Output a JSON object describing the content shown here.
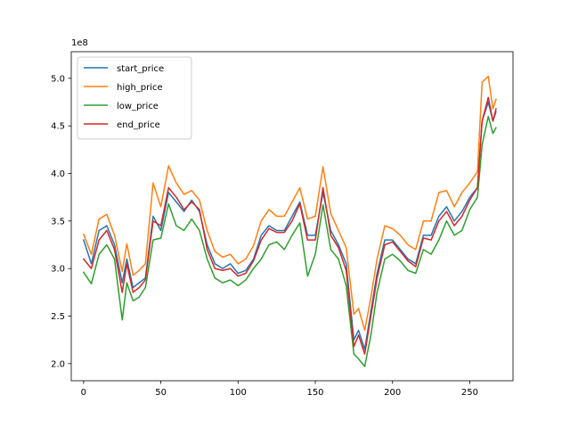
{
  "chart_data": {
    "type": "line",
    "title": "",
    "xlabel": "",
    "ylabel": "",
    "offset_label": "1e8",
    "xlim": [
      -8,
      278
    ],
    "ylim": [
      1.82,
      5.28
    ],
    "xticks": [
      0,
      50,
      100,
      150,
      200,
      250
    ],
    "xtick_labels": [
      "0",
      "50",
      "100",
      "150",
      "200",
      "250"
    ],
    "yticks": [
      2.0,
      2.5,
      3.0,
      3.5,
      4.0,
      4.5,
      5.0
    ],
    "ytick_labels": [
      "2.0",
      "2.5",
      "3.0",
      "3.5",
      "4.0",
      "4.5",
      "5.0"
    ],
    "grid": false,
    "legend_position": "top-left",
    "series": [
      {
        "name": "start_price",
        "color": "#1f77b4",
        "x": [
          0,
          5,
          10,
          15,
          20,
          25,
          28,
          32,
          36,
          40,
          45,
          50,
          55,
          60,
          65,
          70,
          75,
          80,
          85,
          90,
          95,
          100,
          105,
          110,
          115,
          120,
          125,
          130,
          135,
          140,
          145,
          150,
          155,
          160,
          165,
          170,
          175,
          178,
          182,
          186,
          190,
          195,
          200,
          205,
          210,
          215,
          220,
          225,
          230,
          235,
          240,
          245,
          250,
          255,
          258,
          262,
          265,
          267
        ],
        "values": [
          3.3,
          3.05,
          3.4,
          3.45,
          3.25,
          2.85,
          3.1,
          2.8,
          2.85,
          2.9,
          3.55,
          3.4,
          3.8,
          3.7,
          3.6,
          3.72,
          3.6,
          3.25,
          3.05,
          3.0,
          3.05,
          2.95,
          2.98,
          3.1,
          3.35,
          3.45,
          3.4,
          3.4,
          3.55,
          3.7,
          3.35,
          3.35,
          3.8,
          3.4,
          3.25,
          3.05,
          2.25,
          2.35,
          2.15,
          2.55,
          2.95,
          3.3,
          3.3,
          3.2,
          3.1,
          3.05,
          3.35,
          3.35,
          3.55,
          3.65,
          3.5,
          3.6,
          3.75,
          3.85,
          4.55,
          4.75,
          4.55,
          4.65
        ]
      },
      {
        "name": "high_price",
        "color": "#ff7f0e",
        "x": [
          0,
          5,
          10,
          15,
          20,
          25,
          28,
          32,
          36,
          40,
          45,
          50,
          55,
          60,
          65,
          70,
          75,
          80,
          85,
          90,
          95,
          100,
          105,
          110,
          115,
          120,
          125,
          130,
          135,
          140,
          145,
          150,
          155,
          160,
          165,
          170,
          175,
          178,
          182,
          186,
          190,
          195,
          200,
          205,
          210,
          215,
          220,
          225,
          230,
          235,
          240,
          245,
          250,
          255,
          258,
          262,
          265,
          267
        ],
        "values": [
          3.36,
          3.15,
          3.52,
          3.57,
          3.35,
          2.97,
          3.26,
          2.93,
          2.98,
          3.05,
          3.9,
          3.65,
          4.08,
          3.9,
          3.78,
          3.82,
          3.72,
          3.4,
          3.18,
          3.12,
          3.15,
          3.05,
          3.1,
          3.24,
          3.5,
          3.62,
          3.55,
          3.55,
          3.7,
          3.85,
          3.52,
          3.55,
          4.07,
          3.58,
          3.4,
          3.22,
          2.52,
          2.58,
          2.35,
          2.7,
          3.1,
          3.45,
          3.42,
          3.35,
          3.25,
          3.2,
          3.5,
          3.5,
          3.8,
          3.82,
          3.65,
          3.8,
          3.9,
          4.02,
          4.96,
          5.02,
          4.68,
          4.78
        ]
      },
      {
        "name": "low_price",
        "color": "#2ca02c",
        "x": [
          0,
          5,
          10,
          15,
          20,
          25,
          28,
          32,
          36,
          40,
          45,
          50,
          55,
          60,
          65,
          70,
          75,
          80,
          85,
          90,
          95,
          100,
          105,
          110,
          115,
          120,
          125,
          130,
          135,
          140,
          145,
          150,
          155,
          160,
          165,
          170,
          175,
          178,
          182,
          186,
          190,
          195,
          200,
          205,
          210,
          215,
          220,
          225,
          230,
          235,
          240,
          245,
          250,
          255,
          258,
          262,
          265,
          267
        ],
        "values": [
          2.96,
          2.84,
          3.15,
          3.25,
          3.1,
          2.46,
          2.85,
          2.66,
          2.7,
          2.8,
          3.3,
          3.32,
          3.68,
          3.45,
          3.4,
          3.52,
          3.4,
          3.1,
          2.9,
          2.85,
          2.88,
          2.82,
          2.88,
          3.0,
          3.1,
          3.25,
          3.28,
          3.2,
          3.35,
          3.48,
          2.92,
          3.15,
          3.67,
          3.2,
          3.1,
          2.82,
          2.1,
          2.05,
          1.97,
          2.3,
          2.75,
          3.1,
          3.15,
          3.08,
          2.98,
          2.95,
          3.2,
          3.15,
          3.3,
          3.5,
          3.35,
          3.4,
          3.62,
          3.75,
          4.3,
          4.6,
          4.42,
          4.48
        ]
      },
      {
        "name": "end_price",
        "color": "#d62728",
        "x": [
          0,
          5,
          10,
          15,
          20,
          25,
          28,
          32,
          36,
          40,
          45,
          50,
          55,
          60,
          65,
          70,
          75,
          80,
          85,
          90,
          95,
          100,
          105,
          110,
          115,
          120,
          125,
          130,
          135,
          140,
          145,
          150,
          155,
          160,
          165,
          170,
          175,
          178,
          182,
          186,
          190,
          195,
          200,
          205,
          210,
          215,
          220,
          225,
          230,
          235,
          240,
          245,
          250,
          255,
          258,
          262,
          265,
          267
        ],
        "values": [
          3.1,
          3.0,
          3.3,
          3.4,
          3.2,
          2.75,
          3.05,
          2.75,
          2.8,
          2.88,
          3.5,
          3.45,
          3.85,
          3.75,
          3.62,
          3.7,
          3.62,
          3.2,
          3.0,
          2.98,
          3.0,
          2.92,
          2.95,
          3.08,
          3.3,
          3.42,
          3.38,
          3.38,
          3.5,
          3.68,
          3.3,
          3.3,
          3.85,
          3.35,
          3.22,
          2.98,
          2.18,
          2.3,
          2.1,
          2.5,
          2.9,
          3.25,
          3.28,
          3.18,
          3.08,
          3.02,
          3.32,
          3.3,
          3.5,
          3.6,
          3.45,
          3.55,
          3.72,
          3.85,
          4.55,
          4.8,
          4.55,
          4.68
        ]
      }
    ]
  }
}
